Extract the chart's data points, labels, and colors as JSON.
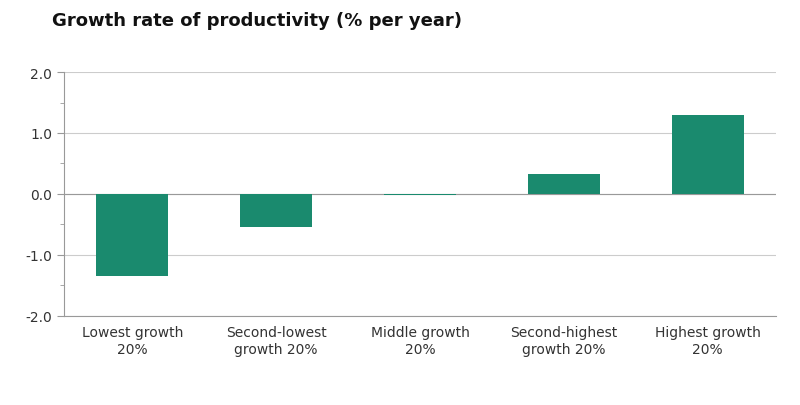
{
  "categories": [
    "Lowest growth\n20%",
    "Second-lowest\ngrowth 20%",
    "Middle growth\n20%",
    "Second-highest\ngrowth 20%",
    "Highest growth\n20%"
  ],
  "values": [
    -1.35,
    -0.55,
    -0.02,
    0.32,
    1.3
  ],
  "bar_color": "#1a8a6e",
  "ylabel": "Growth rate of productivity (% per year)",
  "ylim": [
    -2.0,
    2.0
  ],
  "yticks_major": [
    -2.0,
    -1.0,
    0.0,
    1.0,
    2.0
  ],
  "yticks_minor": [
    -1.5,
    -0.5,
    0.5,
    1.5
  ],
  "background_color": "#ffffff",
  "ylabel_fontsize": 13,
  "tick_fontsize": 10,
  "bar_width": 0.5
}
